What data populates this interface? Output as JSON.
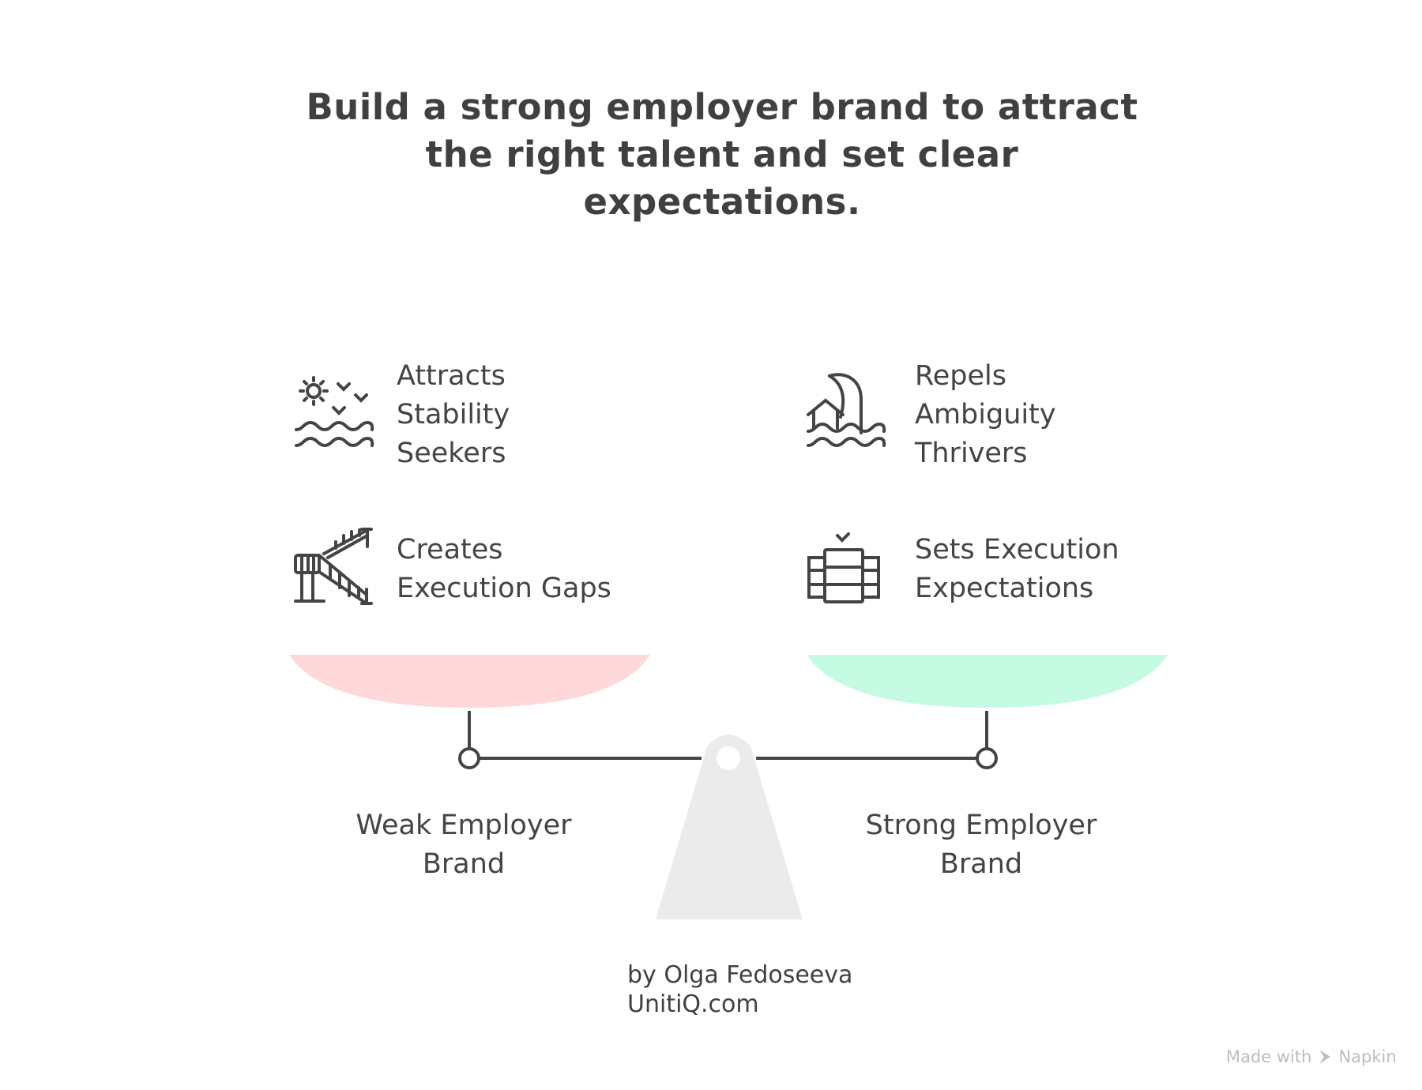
{
  "title": [
    "Build a strong employer brand to attract",
    "the right talent and set clear",
    "expectations."
  ],
  "left": {
    "items": [
      {
        "icon": "sun-waves-birds-icon",
        "text": "Attracts Stability Seekers",
        "lines": [
          "Attracts",
          "Stability",
          "Seekers"
        ]
      },
      {
        "icon": "broken-staircase-icon",
        "text": "Creates Execution Gaps",
        "lines": [
          "Creates",
          "Execution Gaps"
        ]
      }
    ],
    "label": [
      "Weak Employer",
      "Brand"
    ],
    "pan_color": "#FFD9D9"
  },
  "right": {
    "items": [
      {
        "icon": "house-wave-flood-icon",
        "text": "Repels Ambiguity Thrivers",
        "lines": [
          "Repels",
          "Ambiguity",
          "Thrivers"
        ]
      },
      {
        "icon": "checklist-stack-icon",
        "text": "Sets Execution Expectations",
        "lines": [
          "Sets Execution",
          "Expectations"
        ]
      }
    ],
    "label": [
      "Strong Employer",
      "Brand"
    ],
    "pan_color": "#C6FBE3"
  },
  "fulcrum_color": "#EBEBEB",
  "line_color": "#444444",
  "credit": [
    "by Olga Fedoseeva",
    "UnitiQ.com"
  ],
  "watermark": {
    "prefix": "Made with",
    "brand": "Napkin"
  }
}
